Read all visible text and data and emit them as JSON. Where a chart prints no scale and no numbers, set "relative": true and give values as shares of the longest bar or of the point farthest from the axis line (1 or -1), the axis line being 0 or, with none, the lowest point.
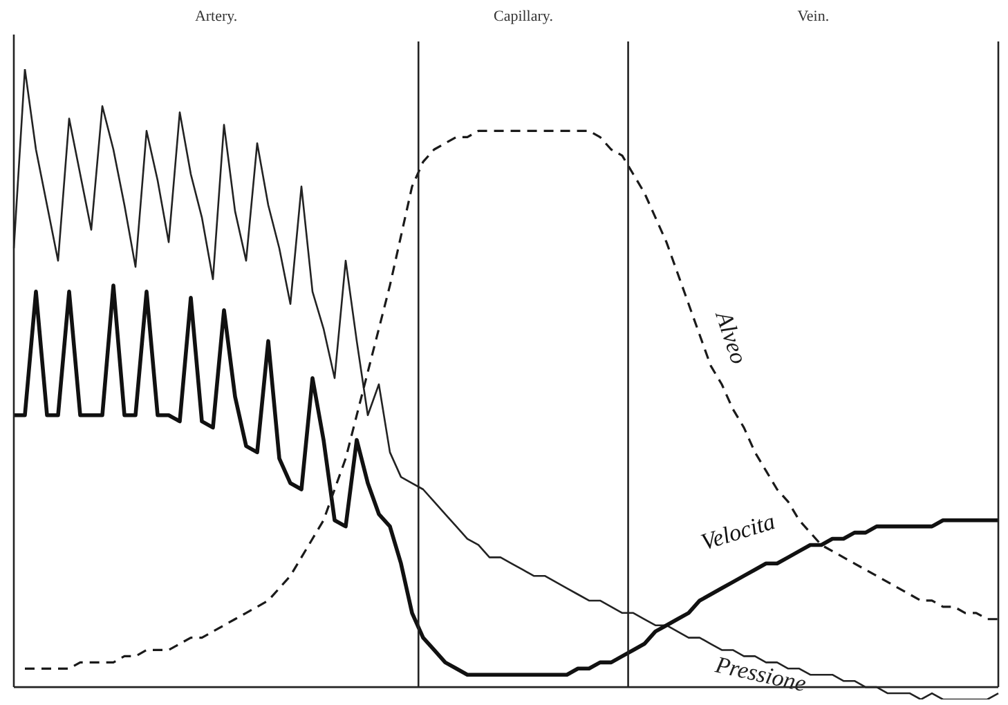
{
  "chart_data": {
    "type": "line",
    "relative": true,
    "legend": false,
    "marker": "none",
    "annotations": [
      "Artery.",
      "Capillary.",
      "Vein."
    ],
    "categories": [
      null,
      null,
      null,
      null,
      null,
      null,
      null,
      null,
      null,
      null,
      null,
      null,
      null,
      null,
      null,
      null,
      null,
      null,
      null,
      null,
      null,
      null,
      null,
      null,
      null,
      null,
      null,
      null,
      null,
      null,
      null,
      null,
      null,
      null,
      null,
      null,
      null,
      null,
      null,
      null,
      null,
      null,
      null,
      null,
      null,
      null,
      null,
      null,
      null,
      null,
      null,
      null,
      null,
      null,
      null,
      null,
      null,
      null,
      null,
      null,
      null,
      null,
      null,
      null,
      null,
      null,
      null,
      null,
      null,
      null,
      null,
      null,
      null,
      null,
      null,
      null,
      null,
      null,
      null,
      null,
      null,
      null,
      null,
      null,
      null,
      null,
      null,
      null,
      null,
      null
    ],
    "series": [
      {
        "name": "Alveo",
        "color": "#1a1a1a",
        "line_style": "dashed",
        "values": [
          null,
          0.03,
          0.03,
          0.03,
          0.03,
          0.03,
          0.04,
          0.04,
          0.04,
          0.04,
          0.05,
          0.05,
          0.06,
          0.06,
          0.06,
          0.07,
          0.08,
          0.08,
          0.09,
          0.1,
          0.11,
          0.12,
          0.13,
          0.14,
          0.16,
          0.18,
          0.21,
          0.24,
          0.27,
          0.32,
          0.37,
          0.44,
          0.51,
          0.58,
          0.65,
          0.73,
          0.81,
          0.85,
          0.87,
          0.88,
          0.89,
          0.89,
          0.9,
          0.9,
          0.9,
          0.9,
          0.9,
          0.9,
          0.9,
          0.9,
          0.9,
          0.9,
          0.9,
          0.89,
          0.87,
          0.86,
          0.83,
          0.8,
          0.76,
          0.72,
          0.67,
          0.62,
          0.57,
          0.52,
          0.49,
          0.45,
          0.42,
          0.38,
          0.35,
          0.32,
          0.3,
          0.27,
          0.25,
          0.23,
          0.22,
          0.21,
          0.2,
          0.19,
          0.18,
          0.17,
          0.16,
          0.15,
          0.14,
          0.14,
          0.13,
          0.13,
          0.12,
          0.12,
          0.11,
          0.11
        ]
      },
      {
        "name": "Velocita",
        "color": "#111111",
        "line_style": "solid",
        "values": [
          0.44,
          0.44,
          0.64,
          0.44,
          0.44,
          0.64,
          0.44,
          0.44,
          0.44,
          0.65,
          0.44,
          0.44,
          0.64,
          0.44,
          0.44,
          0.43,
          0.63,
          0.43,
          0.42,
          0.61,
          0.47,
          0.39,
          0.38,
          0.56,
          0.37,
          0.33,
          0.32,
          0.5,
          0.4,
          0.27,
          0.26,
          0.4,
          0.33,
          0.28,
          0.26,
          0.2,
          0.12,
          0.08,
          0.06,
          0.04,
          0.03,
          0.02,
          0.02,
          0.02,
          0.02,
          0.02,
          0.02,
          0.02,
          0.02,
          0.02,
          0.02,
          0.03,
          0.03,
          0.04,
          0.04,
          0.05,
          0.06,
          0.07,
          0.09,
          0.1,
          0.11,
          0.12,
          0.14,
          0.15,
          0.16,
          0.17,
          0.18,
          0.19,
          0.2,
          0.2,
          0.21,
          0.22,
          0.23,
          0.23,
          0.24,
          0.24,
          0.25,
          0.25,
          0.26,
          0.26,
          0.26,
          0.26,
          0.26,
          0.26,
          0.27,
          0.27,
          0.27,
          0.27,
          0.27,
          0.27
        ]
      },
      {
        "name": "Pressione",
        "color": "#222222",
        "line_style": "solid",
        "values": [
          0.71,
          1,
          0.87,
          0.78,
          0.69,
          0.92,
          0.83,
          0.74,
          0.94,
          0.87,
          0.78,
          0.68,
          0.9,
          0.82,
          0.72,
          0.93,
          0.83,
          0.76,
          0.66,
          0.91,
          0.77,
          0.69,
          0.88,
          0.78,
          0.71,
          0.62,
          0.81,
          0.64,
          0.58,
          0.5,
          0.69,
          0.56,
          0.44,
          0.49,
          0.38,
          0.34,
          0.33,
          0.32,
          0.3,
          0.28,
          0.26,
          0.24,
          0.23,
          0.21,
          0.21,
          0.2,
          0.19,
          0.18,
          0.18,
          0.17,
          0.16,
          0.15,
          0.14,
          0.14,
          0.13,
          0.12,
          0.12,
          0.11,
          0.1,
          0.1,
          0.09,
          0.08,
          0.08,
          0.07,
          0.06,
          0.06,
          0.05,
          0.05,
          0.04,
          0.04,
          0.03,
          0.03,
          0.02,
          0.02,
          0.02,
          0.01,
          0.01,
          0.0,
          0,
          -0.01,
          -0.01,
          -0.01,
          -0.02,
          -0.01,
          -0.02,
          -0.02,
          -0.02,
          -0.02,
          -0.02,
          -0.01
        ]
      }
    ]
  }
}
